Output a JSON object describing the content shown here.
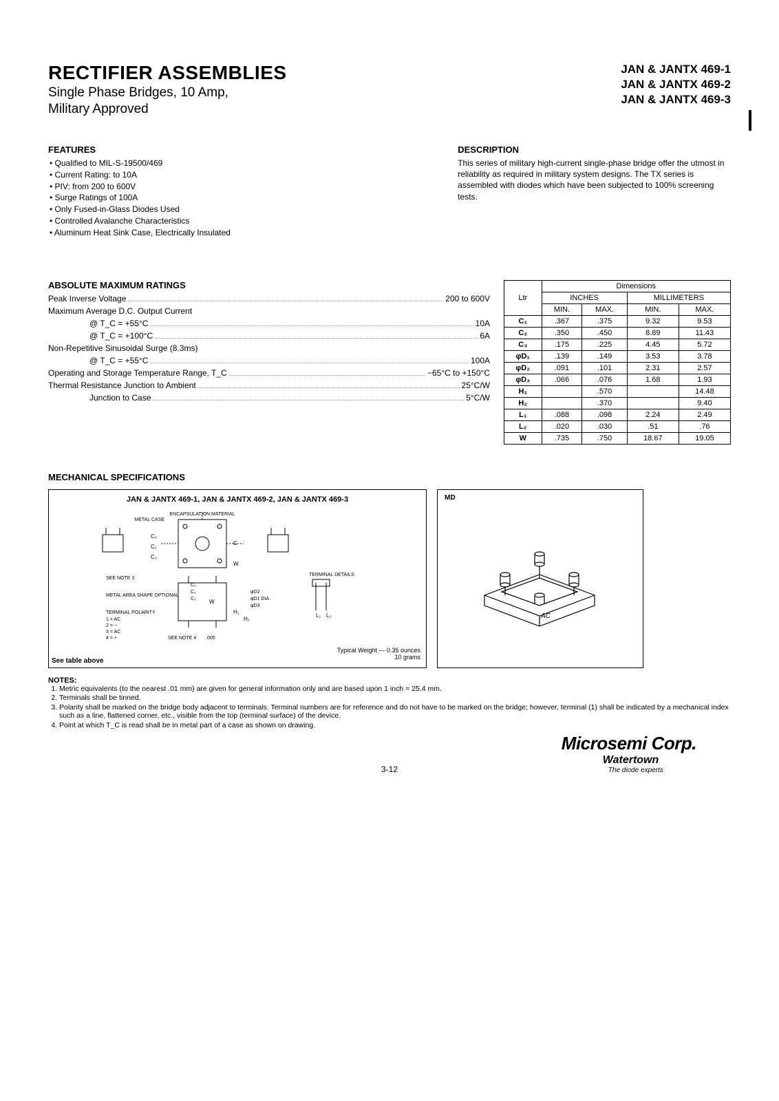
{
  "header": {
    "title": "RECTIFIER ASSEMBLIES",
    "subtitle1": "Single Phase Bridges, 10 Amp,",
    "subtitle2": "Military Approved",
    "parts": [
      "JAN & JANTX 469-1",
      "JAN & JANTX 469-2",
      "JAN & JANTX 469-3"
    ]
  },
  "features": {
    "heading": "FEATURES",
    "items": [
      "Qualified to MIL-S-19500/469",
      "Current Rating: to 10A",
      "PIV: from 200 to 600V",
      "Surge Ratings of 100A",
      "Only Fused-in-Glass Diodes Used",
      "Controlled Avalanche Characteristics",
      "Aluminum Heat Sink Case, Electrically Insulated"
    ]
  },
  "description": {
    "heading": "DESCRIPTION",
    "text": "This series of military high-current single-phase bridge offer the utmost in reliability as required in military system designs. The TX series is assembled with diodes which have been subjected to 100% screening tests."
  },
  "ratings": {
    "heading": "ABSOLUTE MAXIMUM RATINGS",
    "rows": [
      {
        "label": "Peak Inverse Voltage",
        "indent": false,
        "value": "200 to 600V"
      },
      {
        "label": "Maximum Average D.C. Output Current",
        "indent": false,
        "value": ""
      },
      {
        "label": "@ T_C = +55°C",
        "indent": true,
        "value": "10A"
      },
      {
        "label": "@ T_C = +100°C",
        "indent": true,
        "value": "6A"
      },
      {
        "label": "Non-Repetitive Sinusoidal Surge (8.3ms)",
        "indent": false,
        "value": ""
      },
      {
        "label": "@ T_C = +55°C",
        "indent": true,
        "value": "100A"
      },
      {
        "label": "Operating and Storage Temperature Range, T_C",
        "indent": false,
        "value": "−65°C to +150°C"
      },
      {
        "label": "Thermal Resistance Junction to Ambient",
        "indent": false,
        "value": "25°C/W"
      },
      {
        "label": "Junction to Case",
        "indent": true,
        "value": "5°C/W"
      }
    ]
  },
  "dimensions": {
    "title": "Dimensions",
    "ltr": "Ltr",
    "inches": "INCHES",
    "mm": "MILLIMETERS",
    "min": "MIN.",
    "max": "MAX.",
    "rows": [
      {
        "ltr": "C₁",
        "imin": ".367",
        "imax": ".375",
        "mmin": "9.32",
        "mmax": "9.53"
      },
      {
        "ltr": "C₂",
        "imin": ".350",
        "imax": ".450",
        "mmin": "8.89",
        "mmax": "11.43"
      },
      {
        "ltr": "C₃",
        "imin": ".175",
        "imax": ".225",
        "mmin": "4.45",
        "mmax": "5.72"
      },
      {
        "ltr": "φD₁",
        "imin": ".139",
        "imax": ".149",
        "mmin": "3.53",
        "mmax": "3.78"
      },
      {
        "ltr": "φD₂",
        "imin": ".091",
        "imax": ".101",
        "mmin": "2.31",
        "mmax": "2.57"
      },
      {
        "ltr": "φD₃",
        "imin": ".066",
        "imax": ".076",
        "mmin": "1.68",
        "mmax": "1.93"
      },
      {
        "ltr": "H₁",
        "imin": "",
        "imax": ".570",
        "mmin": "",
        "mmax": "14.48"
      },
      {
        "ltr": "H₂",
        "imin": "",
        "imax": ".370",
        "mmin": "",
        "mmax": "9.40"
      },
      {
        "ltr": "L₁",
        "imin": ".088",
        "imax": ".098",
        "mmin": "2.24",
        "mmax": "2.49"
      },
      {
        "ltr": "L₂",
        "imin": ".020",
        "imax": ".030",
        "mmin": ".51",
        "mmax": ".76"
      },
      {
        "ltr": "W",
        "imin": ".735",
        "imax": ".750",
        "mmin": "18.67",
        "mmax": "19.05"
      }
    ]
  },
  "mechanical": {
    "heading": "MECHANICAL SPECIFICATIONS",
    "left_title": "JAN & JANTX 469-1, JAN & JANTX 469-2, JAN & JANTX 469-3",
    "right_title": "MD",
    "encap": "ENCAPSULATION MATERIAL",
    "metal_case": "METAL CASE",
    "see_note3": "SEE NOTE 3",
    "metal_area": "METAL AREA SHAPE OPTIONAL",
    "terminal_details": "TERMINAL DETAILS",
    "terminal_polarity": "TERMINAL POLARITY",
    "polarity": [
      "1 = AC",
      "2 = −",
      "3 = AC",
      "4 = +"
    ],
    "see_note4": "SEE NOTE 4",
    "tol": ".005",
    "weight1": "Typical Weight — 0.35 ounces",
    "weight2": "10 grams",
    "see_table": "See table above",
    "ac_label": "AC"
  },
  "notes": {
    "heading": "NOTES:",
    "items": [
      "Metric equivalents (to the nearest .01 mm) are given for general information only and are based upon 1 inch = 25.4 mm.",
      "Terminals shall be tinned.",
      "Polarity shall be marked on the bridge body adjacent to terminals. Terminal numbers are for reference and do not have to be marked on the bridge; however, terminal (1) shall be indicated by a mechanical index such as a line, flattened corner, etc., visible from the top (terminal surface) of the device.",
      "Point at which T_C is read shall be in metal part of a case as shown on drawing."
    ]
  },
  "footer": {
    "page": "3-12",
    "logo_main": "Microsemi Corp.",
    "logo_sub": "Watertown",
    "logo_tag": "The diode experts"
  }
}
